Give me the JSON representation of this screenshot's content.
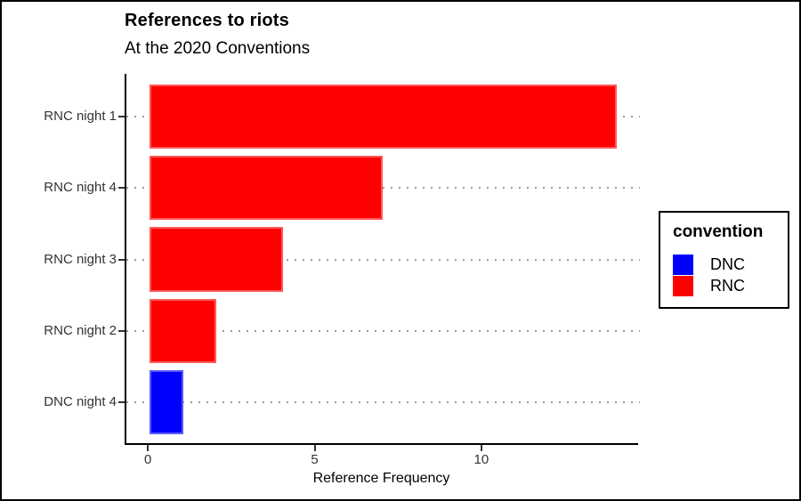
{
  "header": {
    "title": "References to riots",
    "subtitle": "At the 2020 Conventions"
  },
  "chart_data": {
    "type": "bar",
    "orientation": "horizontal",
    "title": "References to riots",
    "subtitle": "At the 2020 Conventions",
    "categories": [
      "RNC night 1",
      "RNC night 4",
      "RNC night 3",
      "RNC night 2",
      "DNC night 4"
    ],
    "values": [
      14,
      7,
      4,
      2,
      1
    ],
    "groups": [
      "RNC",
      "RNC",
      "RNC",
      "RNC",
      "DNC"
    ],
    "xlabel": "Reference Frequency",
    "ylabel": "",
    "x_ticks": [
      0,
      5,
      10
    ],
    "xlim": [
      0,
      14
    ],
    "grid": "dotted-horizontal-only",
    "legend": {
      "title": "convention",
      "position": "right",
      "entries": [
        {
          "label": "DNC",
          "color": "#0000FF"
        },
        {
          "label": "RNC",
          "color": "#FF0000"
        }
      ]
    }
  },
  "colors": {
    "dnc_blue": "#0000FF",
    "rnc_red": "#FF0000",
    "gridline_gray": "#999999",
    "axis_text_gray": "#333333",
    "axis_line_black": "#000000",
    "background": "#FFFFFF"
  }
}
